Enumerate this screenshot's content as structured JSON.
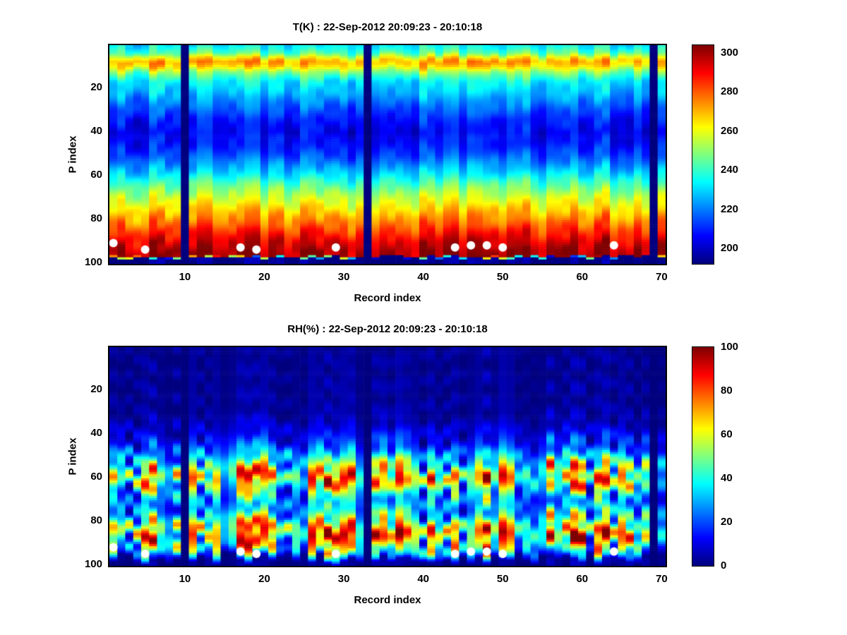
{
  "figure": {
    "background": "#ffffff",
    "text_color": "#000000"
  },
  "chart_data": [
    {
      "type": "heatmap",
      "title": "T(K) : 22-Sep-2012 20:09:23 - 20:10:18",
      "xlabel": "Record index",
      "ylabel": "P index",
      "colormap": "jet",
      "n_cols": 70,
      "n_rows": 100,
      "x_range": [
        1,
        70
      ],
      "y_range": [
        1,
        100
      ],
      "y_axis_reversed": true,
      "x_ticks": [
        10,
        20,
        30,
        40,
        50,
        60,
        70
      ],
      "y_ticks": [
        20,
        40,
        60,
        80,
        100
      ],
      "colorbar": {
        "min": 192,
        "max": 304,
        "ticks": [
          200,
          220,
          240,
          260,
          280,
          300
        ],
        "position": "right"
      },
      "vertical_profile": {
        "p": [
          1,
          4,
          6,
          8,
          10,
          13,
          17,
          22,
          28,
          34,
          40,
          46,
          52,
          58,
          64,
          70,
          75,
          80,
          85,
          90,
          94,
          97,
          97.6,
          100
        ],
        "value": [
          233,
          243,
          260,
          272,
          266,
          248,
          233,
          227,
          218,
          209,
          205,
          208,
          216,
          228,
          243,
          256,
          265,
          274,
          284,
          293,
          299,
          301,
          192,
          192
        ]
      },
      "noise": {
        "seed": 5,
        "col_rel": 0.02,
        "col_abs": 2.5,
        "cell_rel": 0.015,
        "cell_abs": 1.0,
        "row_shift": 0.8
      },
      "missing_record_columns": [
        10,
        33,
        69
      ],
      "flagged_points": {
        "records": [
          1,
          5,
          17,
          19,
          29,
          44,
          46,
          48,
          50,
          64
        ],
        "p": [
          91,
          94,
          93,
          94,
          93,
          93,
          92,
          92,
          93,
          92
        ],
        "color": "#ffffff",
        "radius": 6
      }
    },
    {
      "type": "heatmap",
      "title": "RH(%) : 22-Sep-2012 20:09:23 - 20:10:18",
      "xlabel": "Record index",
      "ylabel": "P index",
      "colormap": "jet",
      "n_cols": 70,
      "n_rows": 100,
      "x_range": [
        1,
        70
      ],
      "y_range": [
        1,
        100
      ],
      "y_axis_reversed": true,
      "x_ticks": [
        10,
        20,
        30,
        40,
        50,
        60,
        70
      ],
      "y_ticks": [
        20,
        40,
        60,
        80,
        100
      ],
      "colorbar": {
        "min": 0,
        "max": 100,
        "ticks": [
          0,
          20,
          40,
          60,
          80,
          100
        ],
        "position": "right"
      },
      "vertical_profile": {
        "p": [
          1,
          30,
          36,
          42,
          47,
          52,
          56,
          59,
          62,
          65,
          69,
          73,
          77,
          81,
          85,
          89,
          93,
          96,
          97.5,
          100
        ],
        "value": [
          2,
          3,
          7,
          13,
          22,
          38,
          55,
          64,
          58,
          44,
          30,
          26,
          38,
          58,
          66,
          58,
          46,
          18,
          2,
          2
        ]
      },
      "noise": {
        "seed": 11,
        "col_rel": 0.5,
        "col_abs": 1.0,
        "cell_rel": 0.45,
        "cell_abs": 3.0,
        "row_shift": 3.0
      },
      "missing_record_columns": [
        10,
        33,
        69
      ],
      "flagged_points": {
        "records": [
          1,
          5,
          17,
          19,
          29,
          44,
          46,
          48,
          50,
          64
        ],
        "p": [
          92,
          95,
          94,
          95,
          95,
          95,
          94,
          94,
          95,
          94
        ],
        "color": "#ffffff",
        "radius": 6
      }
    }
  ]
}
